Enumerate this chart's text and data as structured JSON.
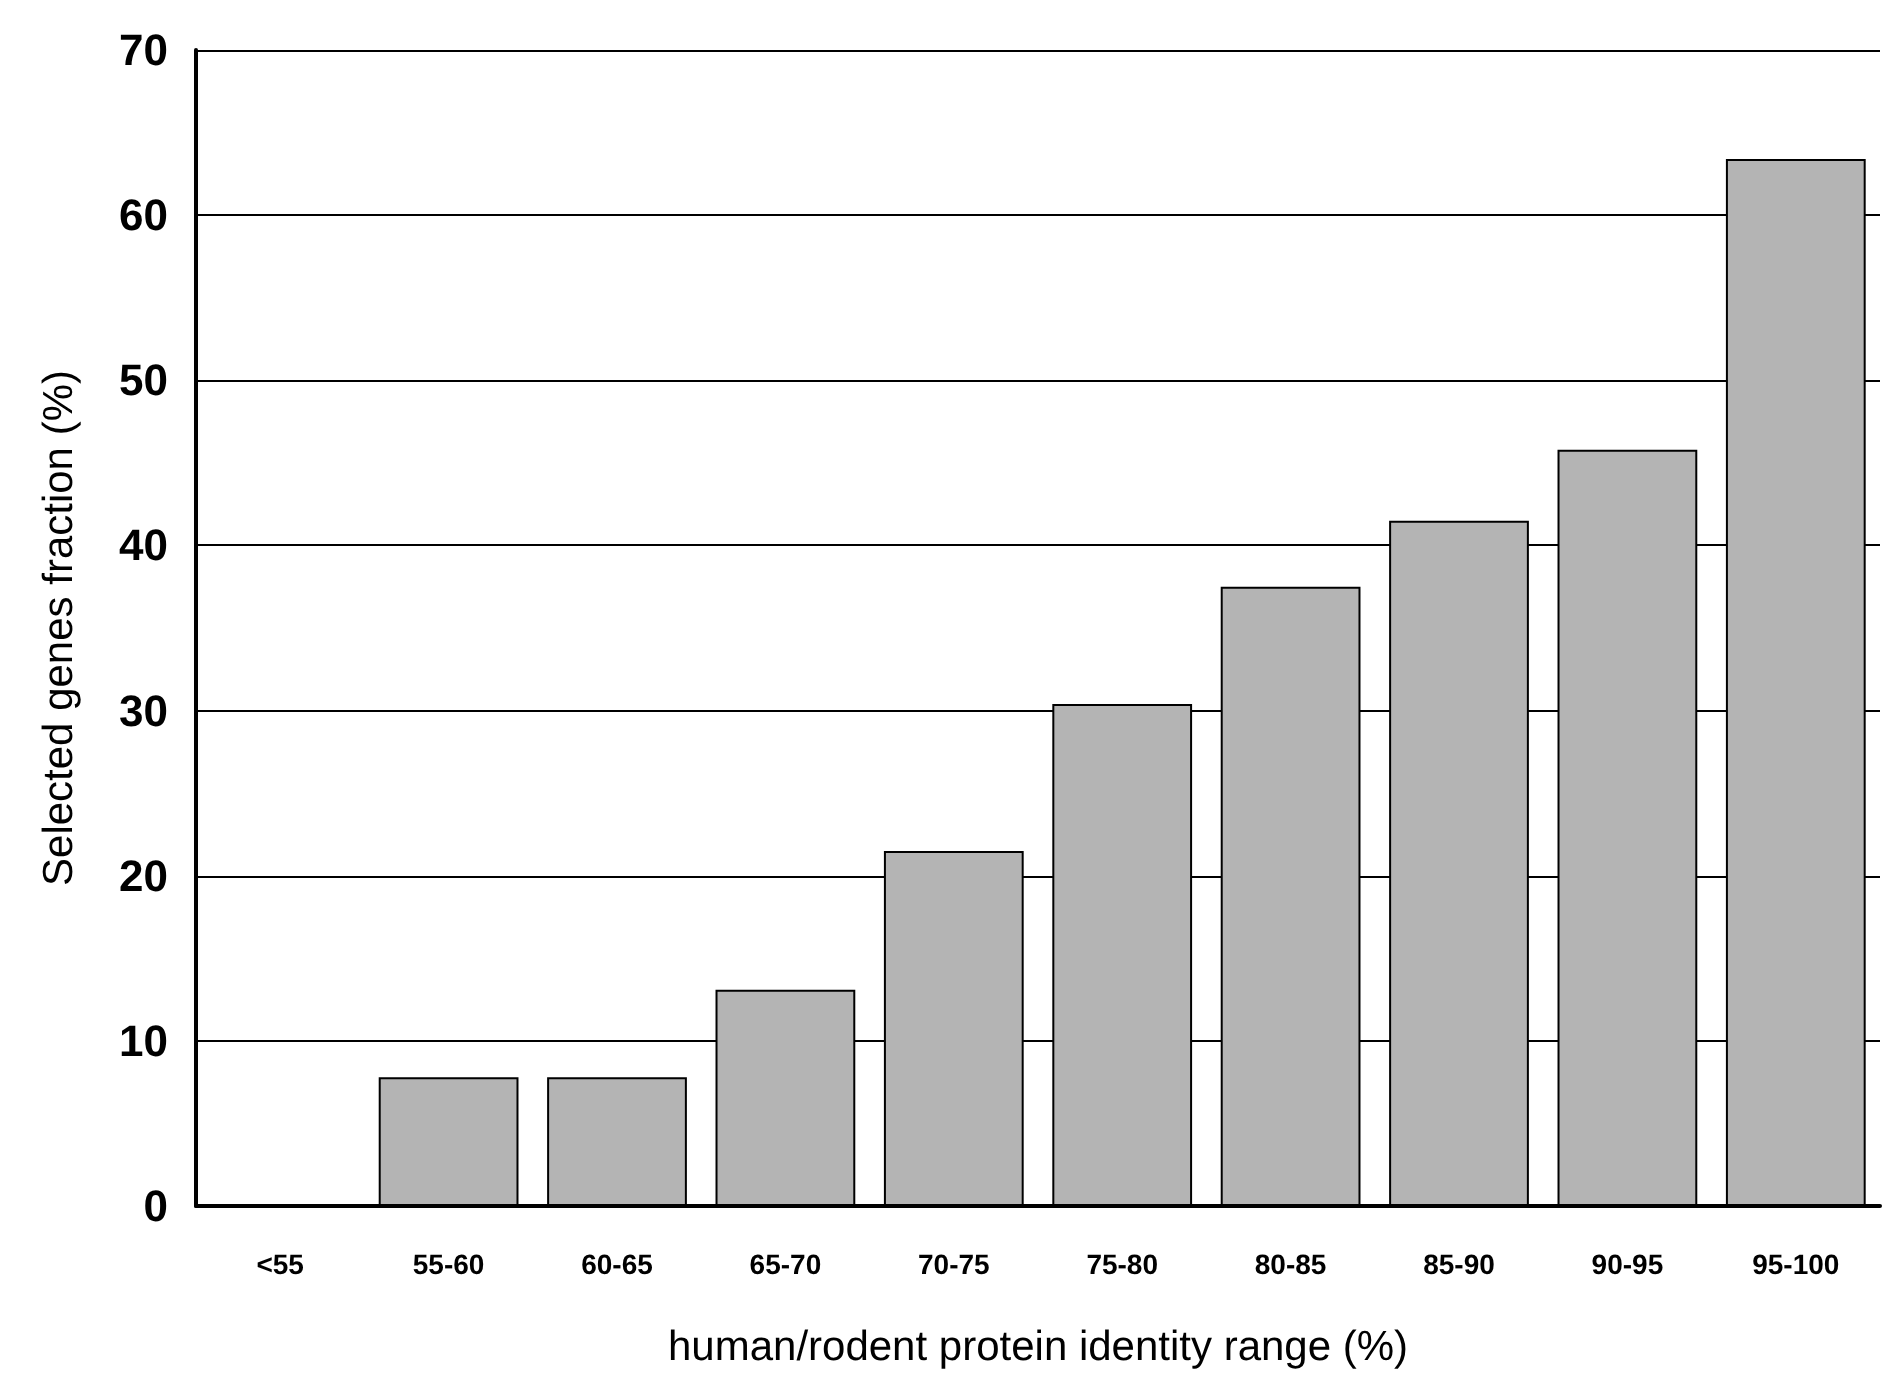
{
  "chart_data": {
    "type": "bar",
    "xlabel": "human/rodent protein identity range (%)",
    "ylabel": "Selected genes fraction (%)",
    "categories": [
      "<55",
      "55-60",
      "60-65",
      "65-70",
      "70-75",
      "75-80",
      "80-85",
      "85-90",
      "90-95",
      "95-100"
    ],
    "values": [
      0,
      7.8,
      7.8,
      13.1,
      21.5,
      30.4,
      37.5,
      41.5,
      45.8,
      63.4
    ],
    "color": "#b4b4b4",
    "ylim": [
      0,
      70
    ],
    "yticks": [
      0,
      10,
      20,
      30,
      40,
      50,
      60,
      70
    ],
    "grid": "y"
  }
}
